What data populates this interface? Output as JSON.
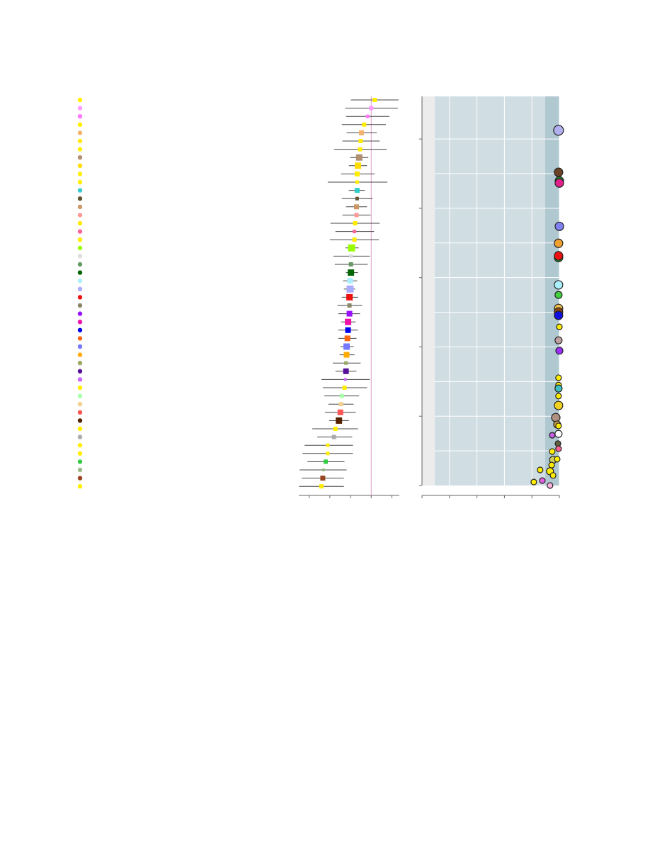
{
  "chart_data": [
    {
      "type": "forest",
      "values": [
        0.17,
        0,
        -0.17,
        -0.34,
        -0.47,
        -0.51,
        -0.54,
        -0.58,
        -0.64,
        -0.68,
        -0.68,
        -0.68,
        -0.68,
        -0.71,
        -0.71,
        -0.78,
        -0.81,
        -0.81,
        -0.95,
        -0.98,
        -0.98,
        -0.98,
        -1.02,
        -1.02,
        -1.05,
        -1.05,
        -1.05,
        -1.12,
        -1.12,
        -1.15,
        -1.19,
        -1.19,
        -1.22,
        -1.22,
        -1.25,
        -1.29,
        -1.42,
        -1.46,
        -1.49,
        -1.56,
        -1.73,
        -1.8,
        -2.1,
        -2.1,
        -2.2,
        -2.31,
        -2.34,
        -2.41
      ],
      "lower": [
        -0.98,
        -1.25,
        -1.22,
        -1.42,
        -1.19,
        -1.39,
        -1.8,
        -1.02,
        -1.08,
        -1.46,
        -2.1,
        -1.08,
        -1.42,
        -1.22,
        -1.39,
        -1.97,
        -1.73,
        -2.0,
        -1.25,
        -1.83,
        -1.76,
        -1.22,
        -1.36,
        -1.32,
        -1.42,
        -1.63,
        -1.59,
        -1.46,
        -1.59,
        -1.59,
        -1.49,
        -1.53,
        -1.86,
        -1.73,
        -2.41,
        -2.34,
        -2.27,
        -2.07,
        -2.24,
        -2.03,
        -2.85,
        -2.61,
        -3.22,
        -3.32,
        -3.08,
        -3.46,
        -3.36,
        -3.49
      ],
      "upper": [
        1.32,
        1.29,
        0.88,
        0.71,
        0.27,
        0.41,
        0.75,
        -0.14,
        -0.2,
        0.17,
        0.78,
        -0.31,
        0.07,
        -0.2,
        -0.03,
        0.41,
        0.14,
        0.37,
        -0.61,
        -0.07,
        -0.17,
        -0.64,
        -0.68,
        -0.78,
        -0.64,
        -0.44,
        -0.54,
        -0.75,
        -0.64,
        -0.71,
        -0.85,
        -0.81,
        -0.51,
        -0.71,
        -0.07,
        -0.2,
        -0.58,
        -0.85,
        -0.75,
        -1.08,
        -0.64,
        -0.92,
        -0.88,
        -0.88,
        -1.29,
        -1.19,
        -1.32,
        -1.32
      ],
      "weights": [
        6,
        6,
        5,
        6,
        7,
        6,
        6,
        9,
        9,
        7,
        5,
        7,
        5,
        7,
        6,
        6,
        5,
        6,
        10,
        5,
        6,
        9,
        8,
        10,
        9,
        6,
        8,
        9,
        8,
        8,
        9,
        8,
        5,
        8,
        4,
        6,
        6,
        6,
        8,
        9,
        6,
        6,
        5,
        5,
        6,
        4,
        7,
        6
      ],
      "colors": [
        "#ffee00",
        "#ff99ff",
        "#ff77ff",
        "#ffee00",
        "#f4b26c",
        "#ffee00",
        "#ffee00",
        "#b09070",
        "#ffdd00",
        "#ffee00",
        "#ffee00",
        "#33cccc",
        "#665533",
        "#cc9966",
        "#ff9999",
        "#ffee00",
        "#ff6699",
        "#ffee00",
        "#99ff00",
        "#dddddd",
        "#669966",
        "#006600",
        "#aaeeff",
        "#aaaaff",
        "#ee1111",
        "#888866",
        "#9911ff",
        "#ee11aa",
        "#0000ee",
        "#ff6611",
        "#7777ff",
        "#ffaa00",
        "#99aa66",
        "#551199",
        "#cc66ff",
        "#ffee00",
        "#aaffaa",
        "#f4d090",
        "#ff5555",
        "#552200",
        "#ffee00",
        "#aaaaaa",
        "#ffee00",
        "#ffee00",
        "#33cc44",
        "#99bb88",
        "#994422",
        "#ffee00"
      ],
      "xlim": [
        -3.5,
        1.36
      ],
      "xticks": [
        -3,
        -2,
        -1,
        0,
        1
      ],
      "reference": 0
    },
    {
      "type": "scatter",
      "x": [
        4.97,
        4.97,
        5.0,
        5.0,
        5.0,
        4.97,
        4.97,
        4.97,
        4.97,
        4.97,
        4.97,
        4.97,
        4.97,
        5.0,
        4.97,
        5.0,
        4.97,
        4.97,
        4.97,
        4.97,
        4.97,
        4.87,
        4.92,
        4.97,
        4.97,
        4.74,
        4.95,
        4.97,
        4.74,
        4.77,
        4.92,
        4.72,
        4.3,
        4.66,
        4.77,
        4.07,
        4.38,
        4.66
      ],
      "values": [
        10.25,
        9.04,
        8.79,
        8.73,
        7.48,
        6.99,
        6.58,
        6.63,
        5.79,
        5.5,
        5.11,
        5.01,
        4.91,
        4.58,
        4.19,
        3.89,
        3.11,
        2.9,
        2.8,
        2.58,
        2.31,
        1.96,
        1.76,
        1.72,
        1.49,
        1.45,
        1.21,
        1.06,
        0.98,
        0.74,
        0.76,
        0.59,
        0.45,
        0.41,
        0.29,
        0.1,
        0.14,
        0
      ],
      "sizes": [
        7,
        6,
        6,
        6,
        6,
        6,
        6,
        6,
        6,
        5,
        6,
        6,
        6,
        4,
        5,
        5,
        4,
        4,
        5,
        4,
        6,
        6,
        5,
        4,
        5,
        4,
        4,
        4,
        4,
        5,
        4,
        4,
        4,
        5,
        4,
        4,
        4,
        4
      ],
      "colors": [
        "#b0b0f0",
        "#6b4226",
        "#228b22",
        "#e0208a",
        "#8080f0",
        "#f0a030",
        "#228b22",
        "#ee1111",
        "#aaf0ff",
        "#40d040",
        "#f0c050",
        "#8b4513",
        "#1010e0",
        "#ffee00",
        "#c0a0a0",
        "#9b30ff",
        "#ffee00",
        "#ffee00",
        "#40c0c0",
        "#ffee00",
        "#f0d020",
        "#b09080",
        "#d0a040",
        "#ffee00",
        "#ffffff",
        "#c060e0",
        "#606040",
        "#ff6090",
        "#ffee00",
        "#d0d060",
        "#ffee00",
        "#ffee00",
        "#ffee00",
        "#ffee00",
        "#ffee00",
        "#ffee00",
        "#e060e0",
        "#ffb0e0"
      ],
      "xlim": [
        0,
        5
      ],
      "xticks": [
        0,
        1,
        2,
        3,
        4,
        5
      ],
      "ylim": [
        0,
        11.23
      ],
      "yticks": [
        0,
        2,
        4,
        6,
        8,
        10
      ],
      "ygrid": [
        1,
        2,
        3,
        4,
        5,
        6,
        7,
        8,
        9,
        10
      ],
      "grid": true
    }
  ]
}
